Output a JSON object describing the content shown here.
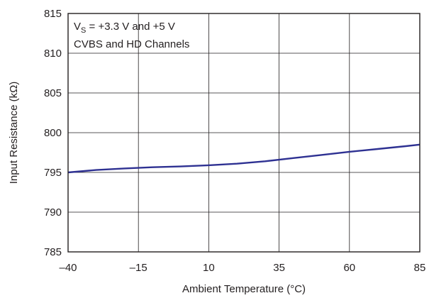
{
  "chart_data": {
    "type": "line",
    "xlabel": "Ambient Temperature (°C)",
    "ylabel": "Input Resistance (kΩ)",
    "xlim": [
      -40,
      85
    ],
    "ylim": [
      785,
      815
    ],
    "xticks": [
      -40,
      -15,
      10,
      35,
      60,
      85
    ],
    "yticks": [
      785,
      790,
      795,
      800,
      805,
      810,
      815
    ],
    "x_tick_labels": [
      "–40",
      "–15",
      "10",
      "35",
      "60",
      "85"
    ],
    "y_tick_labels": [
      "785",
      "790",
      "795",
      "800",
      "805",
      "810",
      "815"
    ],
    "grid": true,
    "annotation": {
      "line1_prefix": "V",
      "line1_sub": "S",
      "line1_rest": " = +3.3 V and +5 V",
      "line2": "CVBS and HD Channels",
      "placement": "top-left"
    },
    "series": [
      {
        "color": "#2e3192",
        "x": [
          -40,
          -30,
          -20,
          -10,
          0,
          10,
          20,
          30,
          40,
          50,
          60,
          70,
          80,
          85
        ],
        "y": [
          795.0,
          795.3,
          795.5,
          795.65,
          795.75,
          795.9,
          796.1,
          796.4,
          796.8,
          797.2,
          797.6,
          797.95,
          798.3,
          798.5
        ]
      }
    ]
  }
}
